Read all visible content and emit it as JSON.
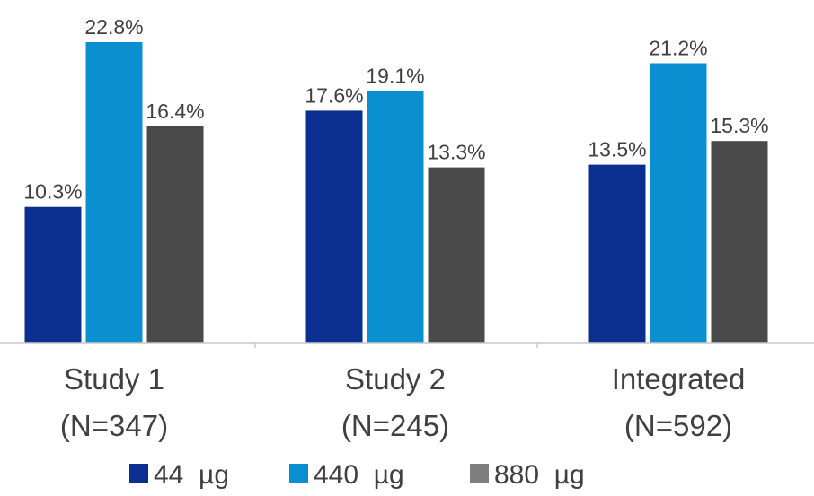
{
  "chart_data": {
    "type": "bar",
    "categories": [
      {
        "line1": "Study 1",
        "line2": "(N=347)"
      },
      {
        "line1": "Study 2",
        "line2": "(N=245)"
      },
      {
        "line1": "Integrated",
        "line2": "(N=592)"
      }
    ],
    "series": [
      {
        "name": "44  µg",
        "color": "#0b2f8f",
        "values": [
          10.3,
          17.6,
          13.5
        ],
        "labels": [
          "10.3%",
          "17.6%",
          "13.5%"
        ]
      },
      {
        "name": "440  µg",
        "color": "#0a8fd0",
        "values": [
          22.8,
          19.1,
          21.2
        ],
        "labels": [
          "22.8%",
          "19.1%",
          "21.2%"
        ]
      },
      {
        "name": "880  µg",
        "color": "#4a4a4a",
        "values": [
          16.4,
          13.3,
          15.3
        ],
        "labels": [
          "16.4%",
          "13.3%",
          "15.3%"
        ]
      }
    ],
    "unit": "%",
    "ylim": [
      0,
      25
    ],
    "grid": false,
    "legend_position": "bottom",
    "legend_swatch_colors": [
      "#0b2f8f",
      "#0a8fd0",
      "#7f7f7f"
    ]
  }
}
